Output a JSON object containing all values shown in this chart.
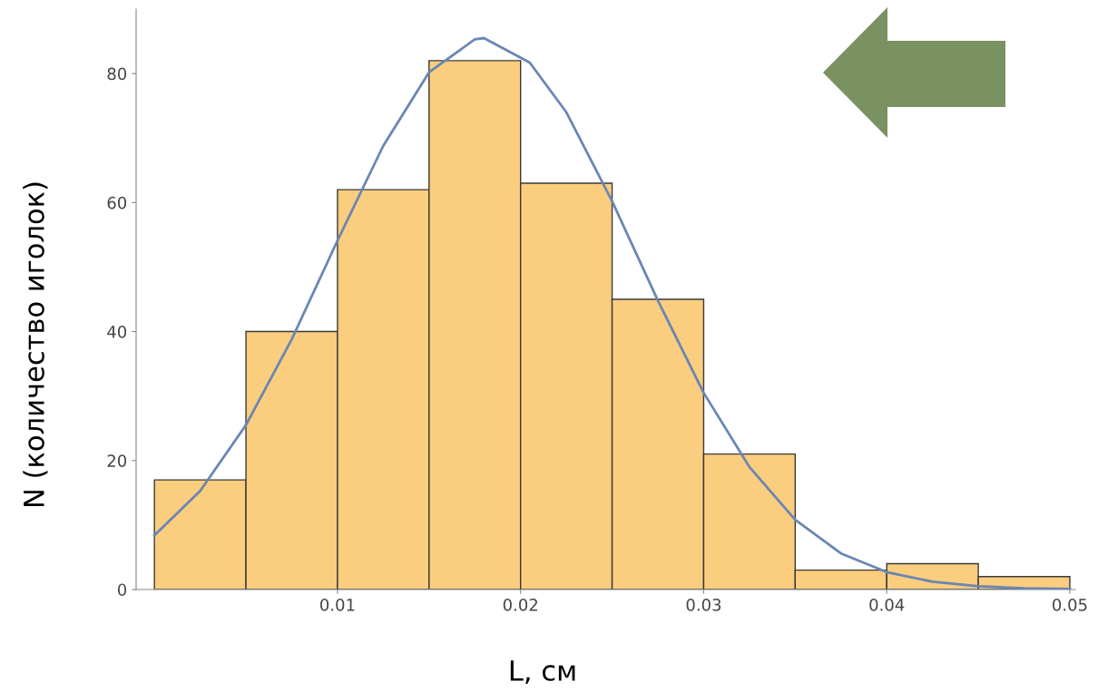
{
  "chart_data": {
    "type": "histogram",
    "bins": [
      0,
      0.005,
      0.01,
      0.015,
      0.02,
      0.025,
      0.03,
      0.035,
      0.04,
      0.045,
      0.05
    ],
    "values": [
      17,
      40,
      62,
      82,
      63,
      45,
      21,
      3,
      4,
      2
    ],
    "color": "#fbcd7f",
    "series": [
      {
        "type": "line",
        "color": "#6a86b3",
        "x": [
          0,
          0.0025,
          0.005,
          0.0075,
          0.01,
          0.0125,
          0.015,
          0.0175,
          0.018,
          0.0205,
          0.0225,
          0.025,
          0.0275,
          0.03,
          0.0325,
          0.035,
          0.0375,
          0.04,
          0.0425,
          0.045,
          0.0475,
          0.05
        ],
        "values": [
          8.4,
          15.3,
          25.5,
          38.8,
          54.1,
          68.8,
          80.2,
          85.3,
          85.5,
          81.7,
          74.0,
          60.2,
          44.8,
          30.5,
          19.0,
          10.8,
          5.6,
          2.7,
          1.2,
          0.5,
          0.2,
          0.1
        ]
      }
    ],
    "xlabel": "L, см",
    "ylabel": "N (количество иголок)",
    "xlim": [
      -0.001,
      0.0503
    ],
    "xticks": [
      0.01,
      0.02,
      0.03,
      0.04,
      0.05
    ],
    "ylim": [
      0,
      90
    ],
    "yticks": [
      0,
      20,
      40,
      60,
      80
    ],
    "grid": false
  }
}
